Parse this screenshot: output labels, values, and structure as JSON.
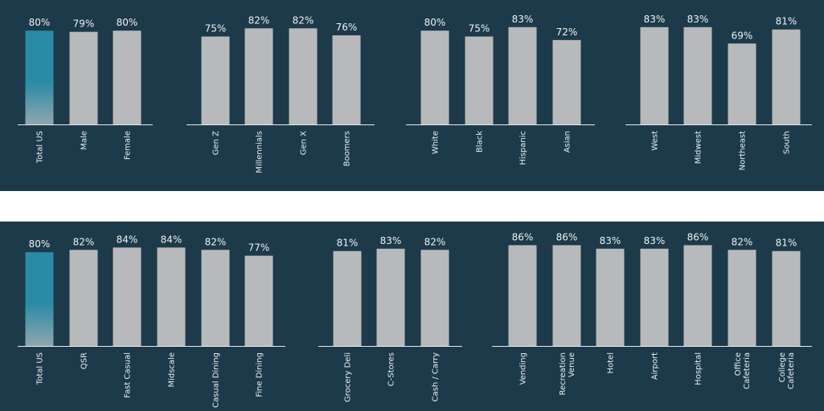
{
  "colors": {
    "background": "#1c3a4a",
    "bar": "#b8b9bb",
    "highlight_top": "#2b8aa6",
    "highlight_bottom": "#8fa7ae",
    "axis": "#e6ebee",
    "text": "#eef2f4"
  },
  "chart_data": [
    {
      "type": "bar",
      "title": "",
      "xlabel": "",
      "ylabel": "",
      "value_suffix": "%",
      "highlight_category": "Total US",
      "categories": [
        "Total US",
        "Male",
        "Female",
        "Gen Z",
        "Millennials",
        "Gen X",
        "Boomers",
        "White",
        "Black",
        "Hispanic",
        "Asian",
        "West",
        "Midwest",
        "Northeast",
        "South"
      ],
      "values": [
        80,
        79,
        80,
        75,
        82,
        82,
        76,
        80,
        75,
        83,
        72,
        83,
        83,
        69,
        81
      ],
      "value_labels": [
        "80%",
        "79%",
        "80%",
        "75%",
        "82%",
        "82%",
        "76%",
        "80%",
        "75%",
        "83%",
        "72%",
        "83%",
        "83%",
        "69%",
        "81%"
      ],
      "groups": [
        [
          "Total US",
          "Male",
          "Female"
        ],
        [
          "Gen Z",
          "Millennials",
          "Gen X",
          "Boomers"
        ],
        [
          "White",
          "Black",
          "Hispanic",
          "Asian"
        ],
        [
          "West",
          "Midwest",
          "Northeast",
          "South"
        ]
      ]
    },
    {
      "type": "bar",
      "title": "",
      "xlabel": "",
      "ylabel": "",
      "value_suffix": "%",
      "highlight_category": "Total US",
      "categories": [
        "Total US",
        "QSR",
        "Fast Casual",
        "Midscale",
        "Casual Dining",
        "Fine Dining",
        "Grocery Deli",
        "C-Stores",
        "Cash / Carry",
        "Vending",
        "Recreation Venue",
        "Hotel",
        "Airport",
        "Hospital",
        "Office Cafeteria",
        "College Cafeteria"
      ],
      "values": [
        80,
        82,
        84,
        84,
        82,
        77,
        81,
        83,
        82,
        86,
        86,
        83,
        83,
        86,
        82,
        81
      ],
      "value_labels": [
        "80%",
        "82%",
        "84%",
        "84%",
        "82%",
        "77%",
        "81%",
        "83%",
        "82%",
        "86%",
        "86%",
        "83%",
        "83%",
        "86%",
        "82%",
        "81%"
      ],
      "groups": [
        [
          "Total US",
          "QSR",
          "Fast Casual",
          "Midscale",
          "Casual Dining",
          "Fine Dining"
        ],
        [
          "Grocery Deli",
          "C-Stores",
          "Cash / Carry"
        ],
        [
          "Vending",
          "Recreation Venue",
          "Hotel",
          "Airport",
          "Hospital",
          "Office Cafeteria",
          "College Cafeteria"
        ]
      ]
    }
  ]
}
